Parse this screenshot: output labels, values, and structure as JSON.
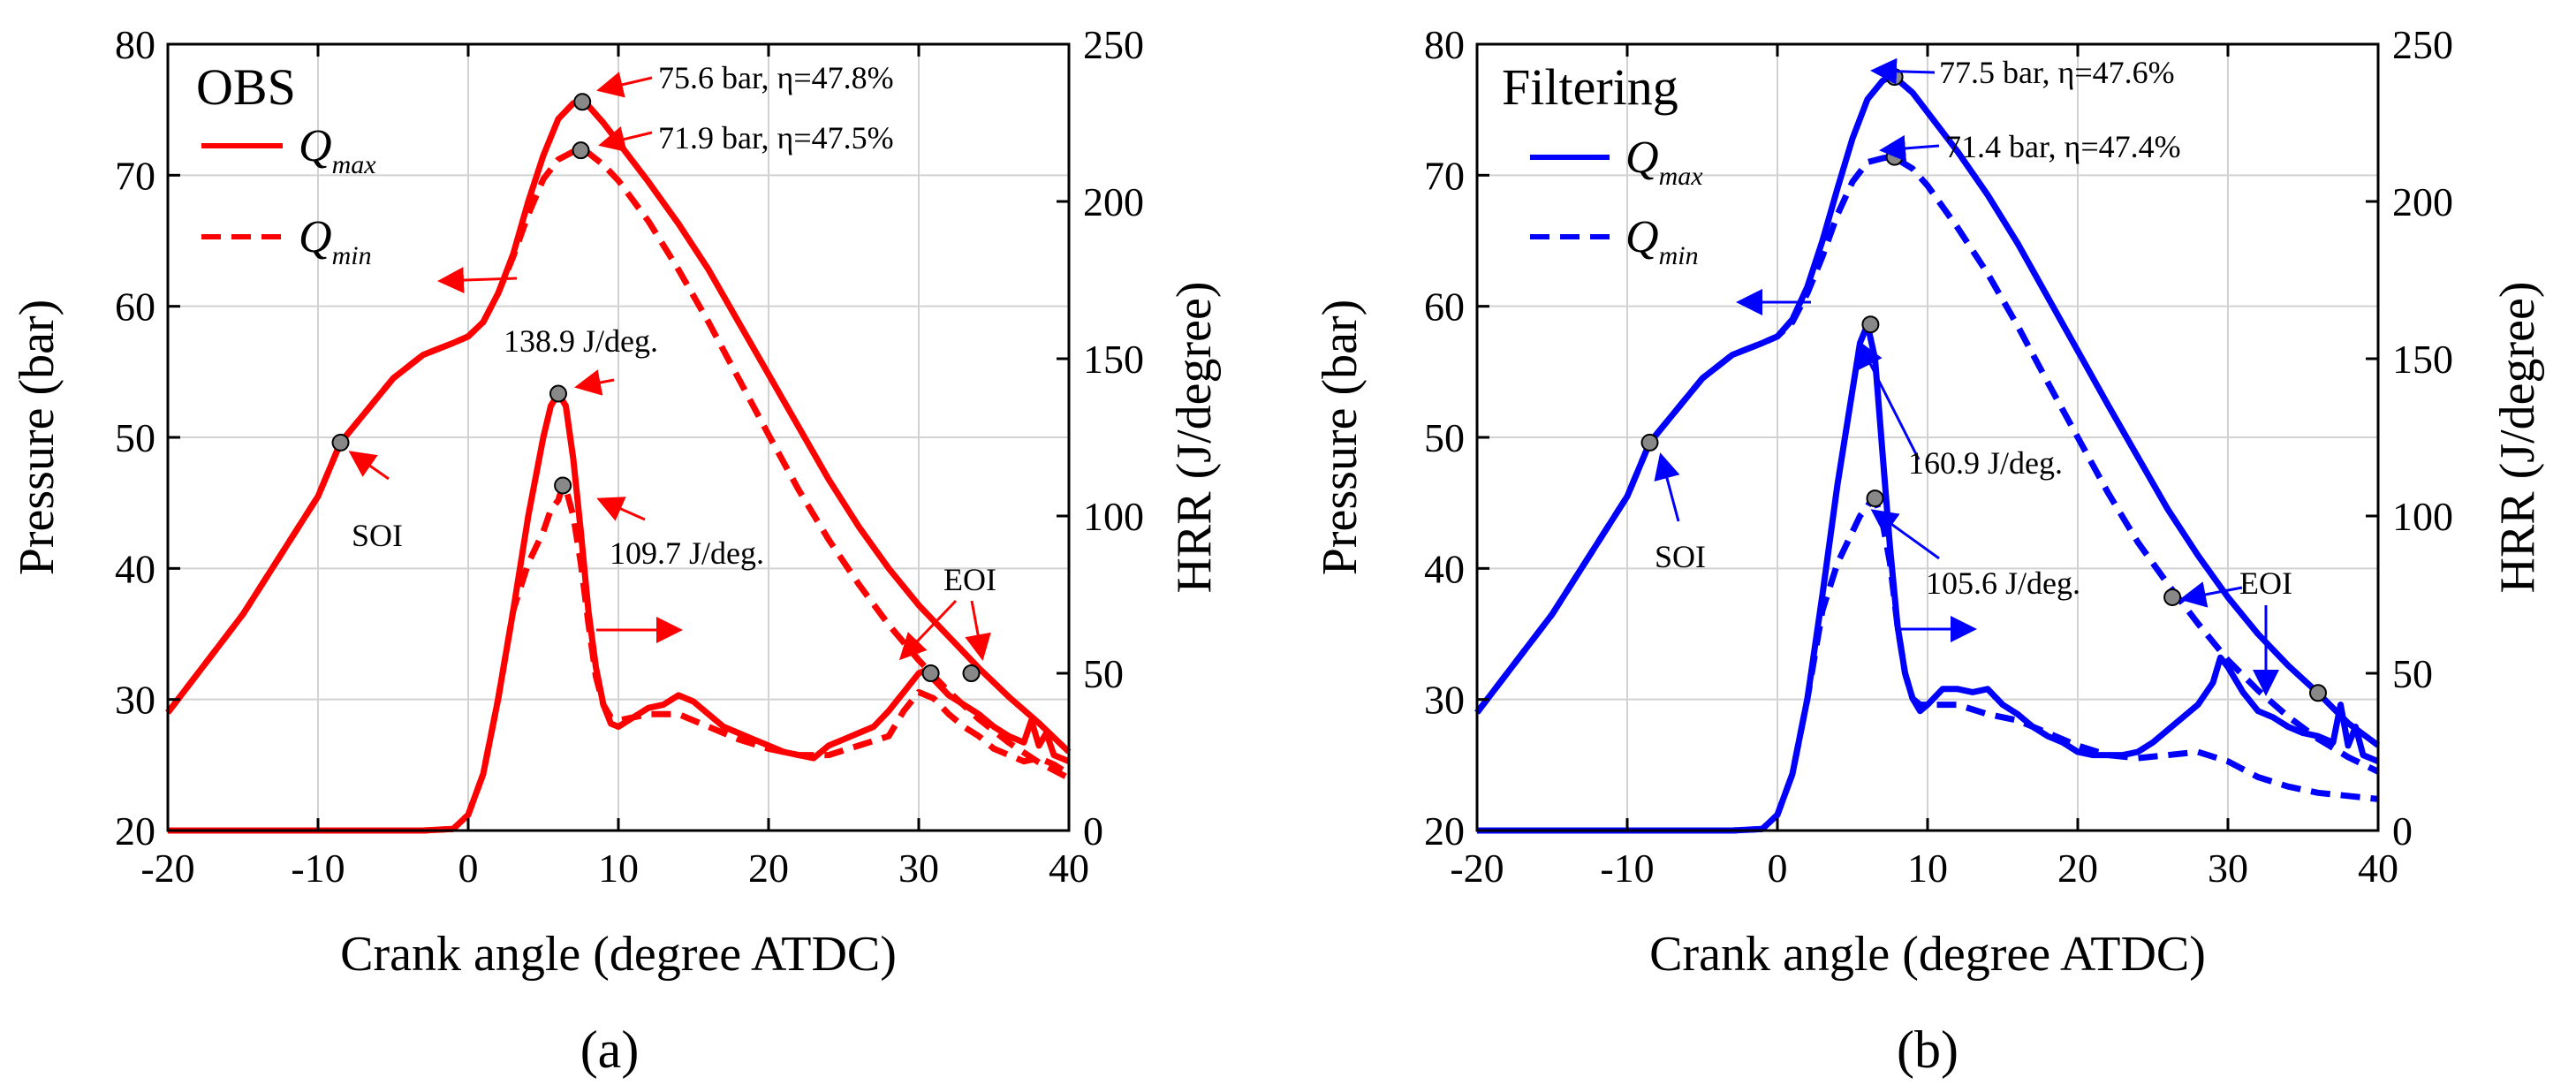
{
  "figure": {
    "caption_a": "(a)",
    "caption_b": "(b)"
  },
  "chart_data": [
    {
      "type": "line",
      "panel": "a",
      "title": "OBS",
      "color": "#ff0000",
      "xlabel": "Crank angle (degree ATDC)",
      "ylabel": "Pressure (bar)",
      "y2label": "HRR (J/degree)",
      "xlim": [
        -20,
        40
      ],
      "ylim": [
        20,
        80
      ],
      "y2lim": [
        0,
        250
      ],
      "xticks": [
        -20,
        -10,
        0,
        10,
        20,
        30,
        40
      ],
      "yticks": [
        20,
        30,
        40,
        50,
        60,
        70,
        80
      ],
      "y2ticks": [
        0,
        50,
        100,
        150,
        200,
        250
      ],
      "grid": true,
      "legend": {
        "position": "top-left",
        "entries": [
          {
            "label": "Q",
            "sub": "max",
            "style": "solid"
          },
          {
            "label": "Q",
            "sub": "min",
            "style": "dashed"
          }
        ]
      },
      "series": [
        {
          "name": "Pressure Qmax",
          "axis": "left",
          "style": "solid",
          "x": [
            -20,
            -15,
            -10,
            -8.5,
            -5,
            -3,
            -1,
            0,
            1,
            2,
            3,
            4,
            5,
            6,
            7,
            7.6,
            8,
            9,
            10,
            12,
            14,
            16,
            18,
            20,
            22,
            24,
            26,
            28,
            30,
            32,
            34,
            36,
            38,
            40
          ],
          "y": [
            29,
            36.5,
            45.5,
            49.6,
            54.5,
            56.3,
            57.2,
            57.7,
            58.8,
            61,
            64,
            68,
            71.5,
            74.3,
            75.5,
            75.6,
            75.3,
            74,
            72.5,
            69.5,
            66.3,
            62.8,
            58.8,
            54.8,
            50.8,
            46.8,
            43.2,
            40,
            37.2,
            34.8,
            32.4,
            30.2,
            28.2,
            26
          ]
        },
        {
          "name": "Pressure Qmin",
          "axis": "left",
          "style": "dashed",
          "x": [
            -20,
            -15,
            -10,
            -8.5,
            -5,
            -3,
            -1,
            0,
            1,
            2,
            3,
            4,
            5,
            6,
            7,
            7.5,
            8,
            9,
            10,
            12,
            14,
            16,
            18,
            20,
            22,
            24,
            26,
            28,
            30,
            32,
            34,
            36,
            38,
            40
          ],
          "y": [
            29,
            36.5,
            45.5,
            49.6,
            54.5,
            56.3,
            57.2,
            57.7,
            58.8,
            61,
            63.8,
            67,
            69.7,
            71.2,
            71.8,
            71.9,
            71.7,
            70.8,
            69.6,
            66.5,
            62.8,
            58.8,
            54.5,
            50.2,
            46,
            42.2,
            38.8,
            35.7,
            33,
            30.6,
            28.5,
            26.7,
            25.2,
            24
          ]
        },
        {
          "name": "HRR Qmax",
          "axis": "right",
          "style": "solid",
          "x": [
            -20,
            -6,
            -3,
            -1,
            0,
            1,
            2,
            3,
            4,
            5,
            5.5,
            6,
            6.5,
            7,
            7.5,
            8,
            8.5,
            9,
            9.5,
            10,
            11,
            12,
            13,
            14,
            15,
            16,
            17,
            18,
            19,
            20,
            21,
            22,
            23,
            24,
            25,
            26,
            27,
            28,
            29,
            30,
            30.5,
            31,
            32,
            33,
            34,
            35,
            36,
            37,
            37.5,
            38,
            38.5,
            39,
            40
          ],
          "y": [
            0,
            0,
            0,
            0.5,
            5,
            18,
            42,
            70,
            100,
            125,
            135,
            138.9,
            135,
            118,
            95,
            70,
            52,
            40,
            34,
            33,
            36,
            39,
            40,
            43,
            41,
            37,
            33,
            31,
            29,
            27,
            25,
            24,
            23,
            27,
            29,
            31,
            33,
            38,
            44,
            50,
            51,
            48,
            43,
            40,
            37,
            33,
            30,
            28,
            35,
            27,
            31,
            24,
            22
          ]
        },
        {
          "name": "HRR Qmin",
          "axis": "right",
          "style": "dashed",
          "x": [
            -20,
            -6,
            -3,
            -1,
            0,
            1,
            2,
            3,
            4,
            5,
            5.5,
            6,
            6.3,
            6.6,
            7,
            7.5,
            8,
            8.5,
            9,
            9.5,
            10,
            12,
            14,
            16,
            18,
            20,
            22,
            24,
            26,
            28,
            29,
            30,
            31,
            32,
            33,
            34,
            35,
            36,
            37,
            38,
            39,
            40
          ],
          "y": [
            0,
            0,
            0,
            0.5,
            5,
            18,
            42,
            70,
            85,
            95,
            102,
            105,
            109.7,
            107,
            100,
            85,
            66,
            49,
            40,
            36,
            35,
            37,
            37,
            33,
            29,
            26,
            24,
            24,
            27,
            30,
            38,
            44,
            42,
            37,
            33,
            30,
            26,
            24,
            22,
            23,
            21,
            18
          ]
        }
      ],
      "markers": [
        {
          "x": -8.5,
          "y": 49.6,
          "axis": "left"
        },
        {
          "x": 7.6,
          "y": 75.6,
          "axis": "left"
        },
        {
          "x": 7.5,
          "y": 71.9,
          "axis": "left"
        },
        {
          "x": 6,
          "y": 138.9,
          "axis": "right"
        },
        {
          "x": 6.3,
          "y": 109.7,
          "axis": "right"
        },
        {
          "x": 30.8,
          "y": 50,
          "axis": "right"
        },
        {
          "x": 33.5,
          "y": 50,
          "axis": "right"
        }
      ],
      "annotations": {
        "peak_max": "75.6 bar, η=47.8%",
        "peak_min": "71.9 bar, η=47.5%",
        "hrr_max": "138.9 J/deg.",
        "hrr_min": "109.7 J/deg.",
        "soi": "SOI",
        "eoi": "EOI"
      }
    },
    {
      "type": "line",
      "panel": "b",
      "title": "Filtering",
      "color": "#0000ff",
      "xlabel": "Crank angle (degree ATDC)",
      "ylabel": "Pressure (bar)",
      "y2label": "HRR (J/degree)",
      "xlim": [
        -20,
        40
      ],
      "ylim": [
        20,
        80
      ],
      "y2lim": [
        0,
        250
      ],
      "xticks": [
        -20,
        -10,
        0,
        10,
        20,
        30,
        40
      ],
      "yticks": [
        20,
        30,
        40,
        50,
        60,
        70,
        80
      ],
      "y2ticks": [
        0,
        50,
        100,
        150,
        200,
        250
      ],
      "grid": true,
      "legend": {
        "position": "top-left",
        "entries": [
          {
            "label": "Q",
            "sub": "max",
            "style": "solid"
          },
          {
            "label": "Q",
            "sub": "min",
            "style": "dashed"
          }
        ]
      },
      "series": [
        {
          "name": "Pressure Qmax",
          "axis": "left",
          "style": "solid",
          "x": [
            -20,
            -15,
            -10,
            -8.5,
            -5,
            -3,
            -1,
            0,
            1,
            2,
            3,
            4,
            5,
            6,
            7,
            7.5,
            8,
            9,
            10,
            12,
            14,
            16,
            18,
            20,
            22,
            24,
            26,
            28,
            30,
            32,
            34,
            36,
            38,
            40
          ],
          "y": [
            29,
            36.5,
            45.5,
            49.6,
            54.5,
            56.3,
            57.2,
            57.7,
            59,
            61.5,
            65,
            69,
            72.8,
            75.8,
            77.2,
            77.5,
            77.3,
            76.3,
            74.8,
            71.8,
            68.5,
            64.8,
            60.7,
            56.6,
            52.5,
            48.5,
            44.5,
            41,
            37.8,
            35,
            32.6,
            30.5,
            28.2,
            26.5
          ]
        },
        {
          "name": "Pressure Qmin",
          "axis": "left",
          "style": "dashed",
          "x": [
            -20,
            -15,
            -10,
            -8.5,
            -5,
            -3,
            -1,
            0,
            1,
            2,
            3,
            4,
            5,
            6,
            7,
            7.5,
            8,
            9,
            10,
            12,
            14,
            16,
            18,
            20,
            22,
            24,
            26,
            28,
            30,
            32,
            34,
            36,
            38,
            40
          ],
          "y": [
            29,
            36.5,
            45.5,
            49.6,
            54.5,
            56.3,
            57.2,
            57.7,
            58.8,
            61,
            63.8,
            67,
            69.5,
            71,
            71.3,
            71.4,
            71.2,
            70.5,
            69.2,
            66,
            62.5,
            58.5,
            54.2,
            50,
            45.8,
            42,
            38.8,
            35.8,
            33,
            30.7,
            28.7,
            27,
            25.6,
            24.5
          ]
        },
        {
          "name": "HRR Qmax",
          "axis": "right",
          "style": "solid",
          "x": [
            -20,
            -6,
            -3,
            -1,
            0,
            1,
            2,
            3,
            4,
            5,
            5.5,
            6,
            6.5,
            7,
            7.5,
            8,
            8.5,
            9,
            9.5,
            10,
            11,
            12,
            13,
            14,
            15,
            16,
            17,
            18,
            19,
            20,
            21,
            22,
            23,
            24,
            25,
            26,
            27,
            28,
            29,
            29.5,
            30,
            31,
            32,
            33,
            34,
            35,
            36,
            37,
            37.5,
            38,
            38.5,
            39,
            40
          ],
          "y": [
            0,
            0,
            0,
            0.5,
            5,
            18,
            42,
            75,
            110,
            140,
            155,
            160.9,
            150,
            120,
            90,
            65,
            50,
            42,
            38,
            40,
            45,
            45,
            44,
            45,
            40,
            37,
            33,
            30,
            28,
            25,
            24,
            24,
            24,
            25,
            28,
            32,
            36,
            40,
            47,
            55,
            52,
            44,
            38,
            36,
            33,
            31,
            30,
            28,
            40,
            27,
            33,
            24,
            22
          ]
        },
        {
          "name": "HRR Qmin",
          "axis": "right",
          "style": "dashed",
          "x": [
            -20,
            -6,
            -3,
            -1,
            0,
            1,
            2,
            3,
            4,
            5,
            5.5,
            6,
            6.3,
            6.6,
            7,
            7.5,
            8,
            8.5,
            9,
            9.5,
            10,
            12,
            14,
            16,
            18,
            20,
            22,
            24,
            26,
            28,
            30,
            32,
            34,
            36,
            38,
            40
          ],
          "y": [
            0,
            0,
            0,
            0.5,
            5,
            18,
            42,
            70,
            85,
            95,
            100,
            103,
            105.6,
            104,
            98,
            85,
            65,
            50,
            42,
            40,
            40,
            40,
            37,
            35,
            31,
            27,
            24,
            23,
            24,
            25,
            22,
            17,
            14,
            12,
            11,
            10
          ]
        }
      ],
      "markers": [
        {
          "x": -8.5,
          "y": 49.6,
          "axis": "left"
        },
        {
          "x": 7.8,
          "y": 77.5,
          "axis": "left"
        },
        {
          "x": 7.8,
          "y": 71.4,
          "axis": "left"
        },
        {
          "x": 6.2,
          "y": 160.9,
          "axis": "right"
        },
        {
          "x": 6.5,
          "y": 105.6,
          "axis": "right"
        },
        {
          "x": 26.3,
          "y": 37.8,
          "axis": "left"
        },
        {
          "x": 36,
          "y": 30.5,
          "axis": "left"
        }
      ],
      "annotations": {
        "peak_max": "77.5 bar, η=47.6%",
        "peak_min": "71.4 bar, η=47.4%",
        "hrr_max": "160.9 J/deg.",
        "hrr_min": "105.6 J/deg.",
        "soi": "SOI",
        "eoi": "EOI"
      }
    }
  ]
}
